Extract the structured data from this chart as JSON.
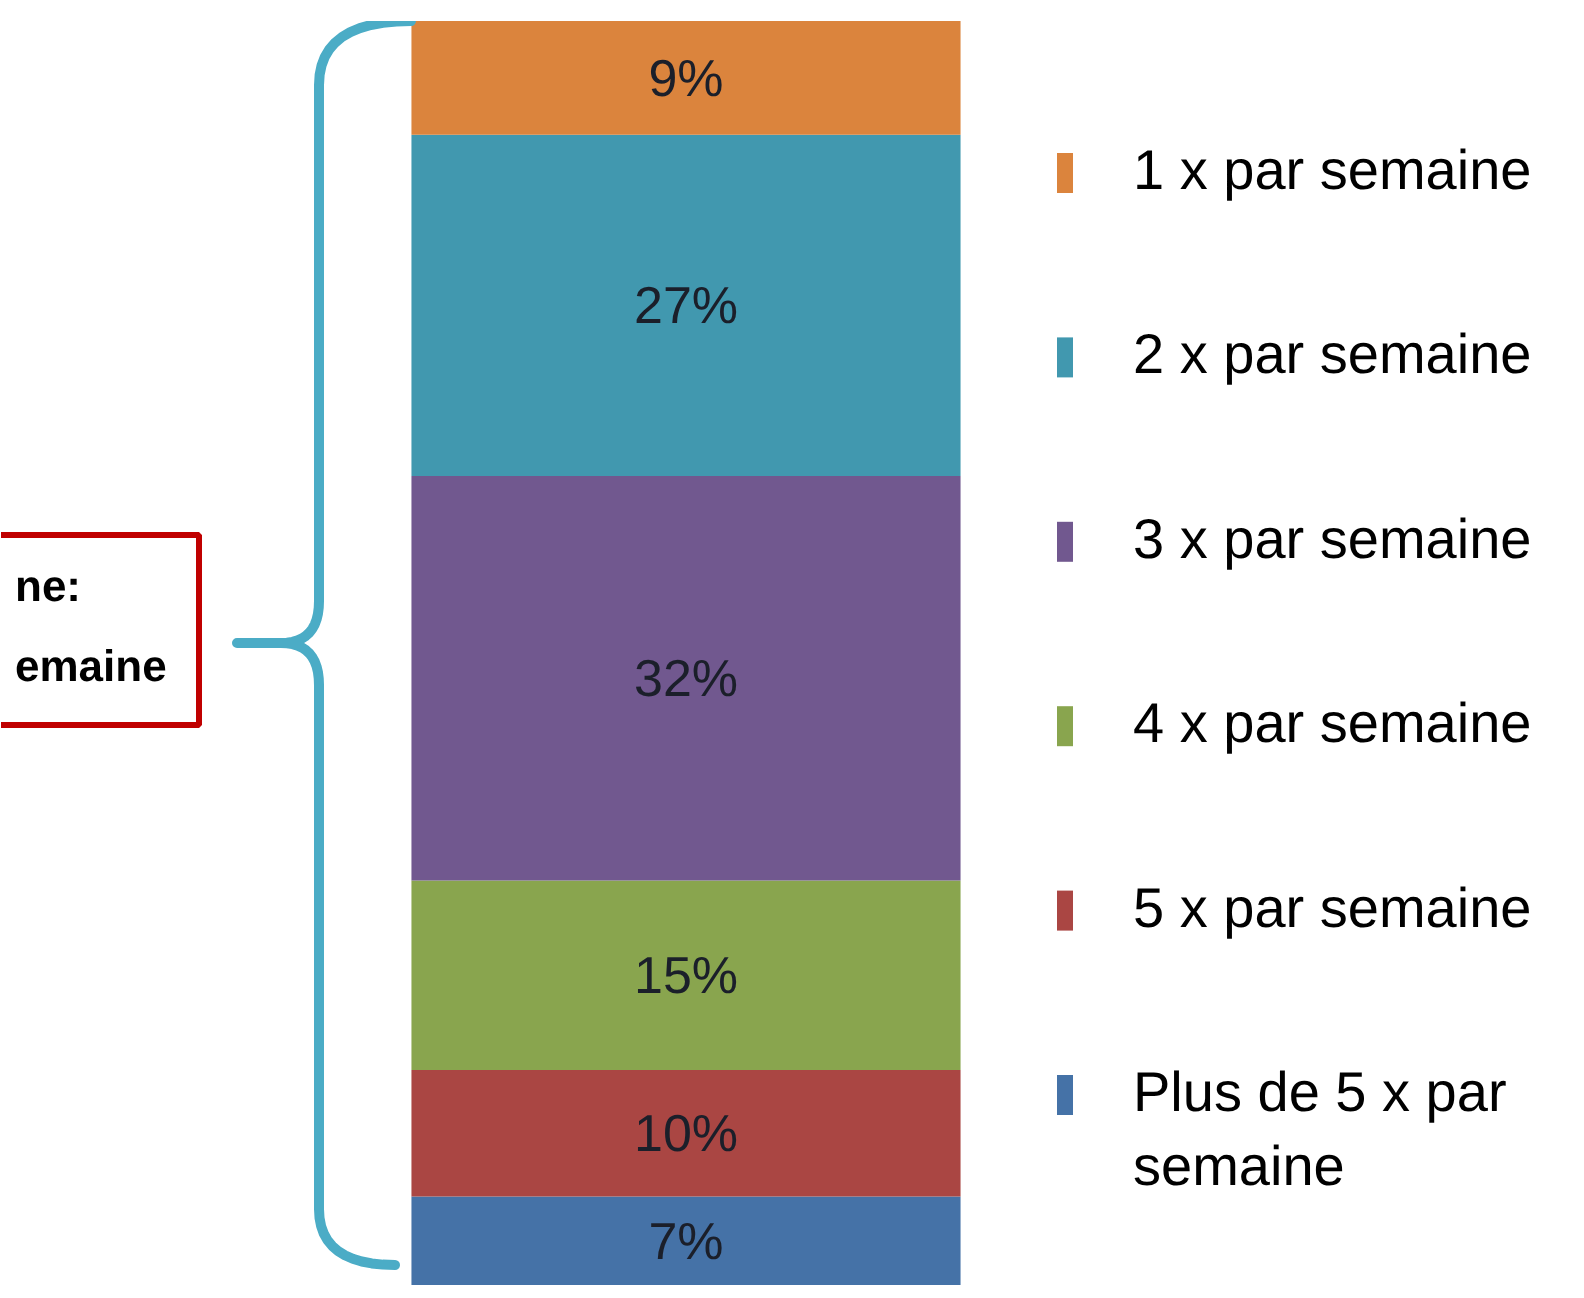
{
  "chart_data": {
    "type": "bar",
    "stacked": true,
    "categories": [
      null
    ],
    "series": [
      {
        "name": "Plus de 5 x par semaine",
        "color": "#4572a7",
        "values": [
          7
        ],
        "value_labels": [
          "7%"
        ]
      },
      {
        "name": "5 x par semaine",
        "color": "#aa4643",
        "values": [
          10
        ],
        "value_labels": [
          "10%"
        ]
      },
      {
        "name": "4 x par semaine",
        "color": "#89a54e",
        "values": [
          15
        ],
        "value_labels": [
          "15%"
        ]
      },
      {
        "name": "3 x par semaine",
        "color": "#71588f",
        "values": [
          32
        ],
        "value_labels": [
          "32%"
        ]
      },
      {
        "name": "2 x par semaine",
        "color": "#4198af",
        "values": [
          27
        ],
        "value_labels": [
          "27%"
        ]
      },
      {
        "name": "1 x par semaine",
        "color": "#db843d",
        "values": [
          9
        ],
        "value_labels": [
          "9%"
        ]
      }
    ],
    "legend": "right",
    "annotations": [
      "ne:\nemaine"
    ]
  }
}
